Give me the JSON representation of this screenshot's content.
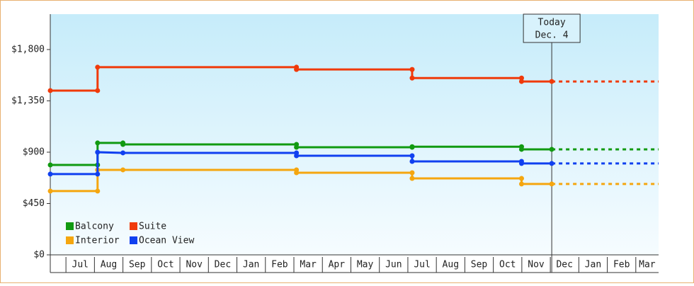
{
  "chart_data": {
    "type": "step-line",
    "xlim": [
      0.45,
      21.8
    ],
    "xticks": [
      {
        "value": 1,
        "label": "Jul"
      },
      {
        "value": 2,
        "label": "Aug"
      },
      {
        "value": 3,
        "label": "Sep"
      },
      {
        "value": 4,
        "label": "Oct"
      },
      {
        "value": 5,
        "label": "Nov"
      },
      {
        "value": 6,
        "label": "Dec"
      },
      {
        "value": 7,
        "label": "Jan"
      },
      {
        "value": 8,
        "label": "Feb"
      },
      {
        "value": 9,
        "label": "Mar"
      },
      {
        "value": 10,
        "label": "Apr"
      },
      {
        "value": 11,
        "label": "May"
      },
      {
        "value": 12,
        "label": "Jun"
      },
      {
        "value": 13,
        "label": "Jul"
      },
      {
        "value": 14,
        "label": "Aug"
      },
      {
        "value": 15,
        "label": "Sep"
      },
      {
        "value": 16,
        "label": "Oct"
      },
      {
        "value": 17,
        "label": "Nov"
      },
      {
        "value": 18,
        "label": "Dec"
      },
      {
        "value": 19,
        "label": "Jan"
      },
      {
        "value": 20,
        "label": "Feb"
      },
      {
        "value": 21,
        "label": "Mar"
      }
    ],
    "ylim": [
      0,
      2110
    ],
    "yticks": [
      {
        "value": 0,
        "label": "$0"
      },
      {
        "value": 450,
        "label": "$450"
      },
      {
        "value": 900,
        "label": "$900"
      },
      {
        "value": 1350,
        "label": "$1,350"
      },
      {
        "value": 1800,
        "label": "$1,800"
      }
    ],
    "today": {
      "x": 18.05,
      "label": [
        "Today",
        "Dec. 4"
      ]
    },
    "legend": "lower left",
    "series": [
      {
        "name": "Balcony",
        "color": "#119a11",
        "x": [
          0.45,
          2.11,
          2.11,
          3.0,
          3.0,
          9.09,
          9.09,
          13.15,
          13.15,
          16.99,
          16.99,
          18.05
        ],
        "values": [
          788,
          788,
          981,
          981,
          968,
          968,
          943,
          943,
          948,
          948,
          925,
          925
        ]
      },
      {
        "name": "Suite",
        "color": "#f03a0a",
        "x": [
          0.45,
          2.11,
          2.11,
          9.09,
          9.09,
          13.15,
          13.15,
          16.99,
          16.99,
          18.05
        ],
        "values": [
          1440,
          1440,
          1645,
          1645,
          1625,
          1625,
          1550,
          1550,
          1520,
          1520
        ]
      },
      {
        "name": "Interior",
        "color": "#f5a60f",
        "x": [
          0.45,
          2.11,
          2.11,
          3.0,
          9.09,
          9.09,
          13.15,
          13.15,
          16.99,
          16.99,
          18.05
        ],
        "values": [
          559,
          559,
          745,
          745,
          745,
          720,
          720,
          670,
          670,
          621,
          621
        ]
      },
      {
        "name": "Ocean View",
        "color": "#1040f0",
        "x": [
          0.45,
          2.11,
          2.11,
          3.0,
          9.09,
          9.09,
          13.15,
          13.15,
          16.99,
          16.99,
          18.05
        ],
        "values": [
          708,
          708,
          900,
          894,
          894,
          869,
          869,
          819,
          819,
          801,
          801
        ]
      }
    ]
  }
}
